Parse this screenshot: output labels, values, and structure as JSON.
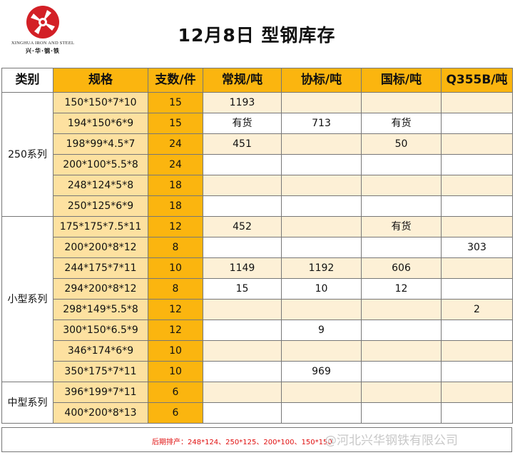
{
  "header": {
    "company_en": "XINGHUA IRON AND STEEL",
    "company_cn": "兴·华·钢·铁",
    "title": "12月8日  型钢库存",
    "brand_color": "#d32026"
  },
  "table": {
    "columns": [
      "类别",
      "规格",
      "支数/件",
      "常规/吨",
      "协标/吨",
      "国标/吨",
      "Q355B/吨"
    ],
    "groups": [
      {
        "category": "250系列",
        "rows": [
          {
            "spec": "150*150*7*10",
            "count": "15",
            "regular": "1193",
            "assoc": "",
            "national": "",
            "q355b": ""
          },
          {
            "spec": "194*150*6*9",
            "count": "15",
            "regular": "有货",
            "assoc": "713",
            "national": "有货",
            "q355b": ""
          },
          {
            "spec": "198*99*4.5*7",
            "count": "24",
            "regular": "451",
            "assoc": "",
            "national": "50",
            "q355b": ""
          },
          {
            "spec": "200*100*5.5*8",
            "count": "24",
            "regular": "",
            "assoc": "",
            "national": "",
            "q355b": ""
          },
          {
            "spec": "248*124*5*8",
            "count": "18",
            "regular": "",
            "assoc": "",
            "national": "",
            "q355b": ""
          },
          {
            "spec": "250*125*6*9",
            "count": "18",
            "regular": "",
            "assoc": "",
            "national": "",
            "q355b": ""
          }
        ]
      },
      {
        "category": "小型系列",
        "rows": [
          {
            "spec": "175*175*7.5*11",
            "count": "12",
            "regular": "452",
            "assoc": "",
            "national": "有货",
            "q355b": ""
          },
          {
            "spec": "200*200*8*12",
            "count": "8",
            "regular": "",
            "assoc": "",
            "national": "",
            "q355b": "303"
          },
          {
            "spec": "244*175*7*11",
            "count": "10",
            "regular": "1149",
            "assoc": "1192",
            "national": "606",
            "q355b": ""
          },
          {
            "spec": "294*200*8*12",
            "count": "8",
            "regular": "15",
            "assoc": "10",
            "national": "12",
            "q355b": ""
          },
          {
            "spec": "298*149*5.5*8",
            "count": "12",
            "regular": "",
            "assoc": "",
            "national": "",
            "q355b": "2"
          },
          {
            "spec": "300*150*6.5*9",
            "count": "12",
            "regular": "",
            "assoc": "9",
            "national": "",
            "q355b": ""
          },
          {
            "spec": "346*174*6*9",
            "count": "10",
            "regular": "",
            "assoc": "",
            "national": "",
            "q355b": ""
          },
          {
            "spec": "350*175*7*11",
            "count": "10",
            "regular": "",
            "assoc": "969",
            "national": "",
            "q355b": ""
          }
        ]
      },
      {
        "category": "中型系列",
        "rows": [
          {
            "spec": "396*199*7*11",
            "count": "6",
            "regular": "",
            "assoc": "",
            "national": "",
            "q355b": ""
          },
          {
            "spec": "400*200*8*13",
            "count": "6",
            "regular": "",
            "assoc": "",
            "national": "",
            "q355b": ""
          }
        ]
      }
    ]
  },
  "footer": {
    "note": "后期排产：248*124、250*125、200*100、150*150",
    "watermark": "@河北兴华钢铁有限公司"
  }
}
